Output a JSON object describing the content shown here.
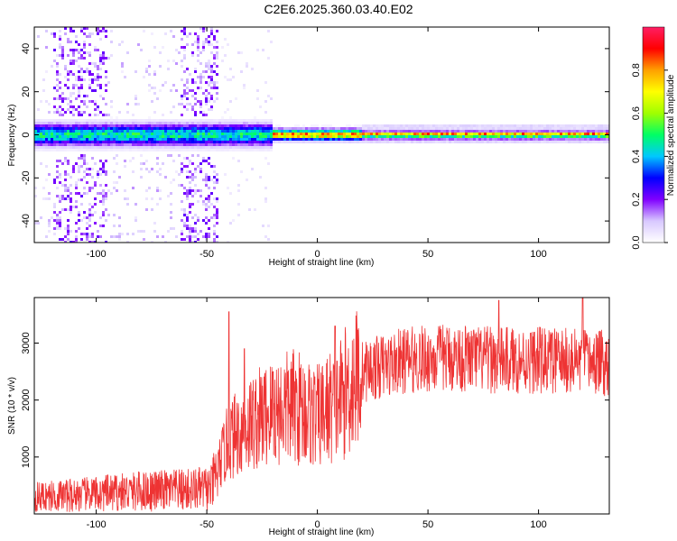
{
  "title": "C2E6.2025.360.03.40.E02",
  "chart_data": [
    {
      "type": "heatmap",
      "xlabel": "Height of straight line (km)",
      "ylabel": "Frequency (Hz)",
      "xlim": [
        -128,
        132
      ],
      "ylim": [
        -50,
        50
      ],
      "xticks": [
        -100,
        -50,
        0,
        50,
        100
      ],
      "yticks": [
        -40,
        -20,
        0,
        20,
        40
      ],
      "colorbar": {
        "label": "Normalized spectral amplitude",
        "range": [
          0,
          1
        ],
        "ticks": [
          "0.0",
          "0.2",
          "0.4",
          "0.6",
          "0.8"
        ],
        "colors": [
          "#ffffff",
          "#d8c8ff",
          "#8000ff",
          "#0000ff",
          "#00c8ff",
          "#00ff64",
          "#a0ff00",
          "#ffff00",
          "#ffa000",
          "#ff0000",
          "#ff1e64"
        ]
      },
      "ridge": {
        "center_hz": 0,
        "segments": [
          {
            "x": [
              -128,
              -20
            ],
            "halfwidth_hz": 4,
            "peak": 0.5
          },
          {
            "x": [
              -20,
              20
            ],
            "halfwidth_hz": 2,
            "peak": 0.85
          },
          {
            "x": [
              20,
              132
            ],
            "halfwidth_hz": 1,
            "peak": 0.95
          }
        ]
      },
      "noise_region_x": [
        -128,
        -45
      ]
    },
    {
      "type": "line",
      "xlabel": "Height of straight line (km)",
      "ylabel": "SNR (10 * v/v)",
      "xlim": [
        -128,
        132
      ],
      "ylim": [
        0,
        3800
      ],
      "xticks": [
        -100,
        -50,
        0,
        50,
        100
      ],
      "yticks": [
        1000,
        2000,
        3000
      ],
      "color": "#ee3333",
      "trend": {
        "x": [
          -128,
          -100,
          -80,
          -60,
          -48,
          -44,
          -40,
          -30,
          -20,
          -10,
          0,
          10,
          20,
          40,
          60,
          80,
          100,
          132
        ],
        "y": [
          300,
          350,
          400,
          420,
          450,
          900,
          1300,
          1600,
          1800,
          1900,
          1700,
          2000,
          2500,
          2700,
          2750,
          2700,
          2700,
          2650
        ]
      },
      "spikes": [
        {
          "x": -40,
          "y": 3550
        },
        {
          "x": -33,
          "y": 2900
        },
        {
          "x": -20,
          "y": 2500
        },
        {
          "x": 8,
          "y": 3300
        },
        {
          "x": 82,
          "y": 3750
        },
        {
          "x": 120,
          "y": 3800
        }
      ]
    }
  ]
}
